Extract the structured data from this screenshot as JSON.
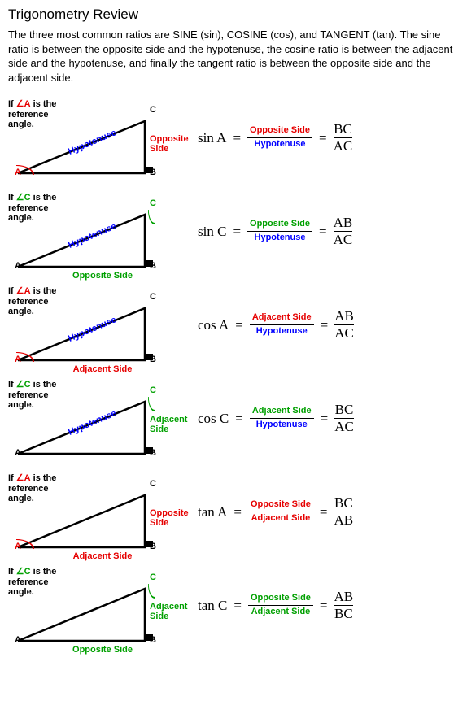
{
  "colors": {
    "red": "#e60000",
    "green": "#00a000",
    "blue": "#0000ff",
    "black": "#000000",
    "background": "#ffffff"
  },
  "title": "Trigonometry Review",
  "intro": "The three most  common ratios are SINE (sin), COSINE (cos), and TANGENT (tan).  The sine ratio is between the opposite side and the hypotenuse, the cosine ratio is between the adjacent side and the hypotenuse, and finally the tangent ratio is between the opposite side and the adjacent side.",
  "labels": {
    "ref_if": "If ",
    "ref_angle_A": "∠A",
    "ref_angle_C": "∠C",
    "ref_is_the": " is the",
    "ref_reference": "reference",
    "ref_angle": "angle.",
    "hypotenuse": "Hypotenuse",
    "opposite": "Opposite",
    "opposite_side": "Opposite Side",
    "adjacent": "Adjacent",
    "adjacent_side": "Adjacent Side",
    "side": "Side"
  },
  "vertices": {
    "A": "A",
    "B": "B",
    "C": "C"
  },
  "rows": [
    {
      "ref": "A",
      "ref_color": "red",
      "hyp_show": true,
      "right_label": "Opposite|Side",
      "right_color": "red",
      "bottom_label": "",
      "bottom_color": "",
      "func": "sin A",
      "num_text": "Opposite Side",
      "num_color": "red",
      "den_text": "Hypotenuse",
      "den_color": "blue",
      "rhs_num": "BC",
      "rhs_den": "AC"
    },
    {
      "ref": "C",
      "ref_color": "green",
      "hyp_show": true,
      "right_label": "",
      "right_color": "",
      "bottom_label": "Opposite Side",
      "bottom_color": "green",
      "func": "sin C",
      "num_text": "Opposite Side",
      "num_color": "green",
      "den_text": "Hypotenuse",
      "den_color": "blue",
      "rhs_num": "AB",
      "rhs_den": "AC"
    },
    {
      "ref": "A",
      "ref_color": "red",
      "hyp_show": true,
      "right_label": "",
      "right_color": "",
      "bottom_label": "Adjacent Side",
      "bottom_color": "red",
      "func": "cos A",
      "num_text": "Adjacent Side",
      "num_color": "red",
      "den_text": "Hypotenuse",
      "den_color": "blue",
      "rhs_num": "AB",
      "rhs_den": "AC"
    },
    {
      "ref": "C",
      "ref_color": "green",
      "hyp_show": true,
      "right_label": "Adjacent|Side",
      "right_color": "green",
      "bottom_label": "",
      "bottom_color": "",
      "func": "cos C",
      "num_text": "Adjacent Side",
      "num_color": "green",
      "den_text": "Hypotenuse",
      "den_color": "blue",
      "rhs_num": "BC",
      "rhs_den": "AC"
    },
    {
      "ref": "A",
      "ref_color": "red",
      "hyp_show": false,
      "right_label": "Opposite|Side",
      "right_color": "red",
      "bottom_label": "Adjacent Side",
      "bottom_color": "red",
      "func": "tan A",
      "num_text": "Opposite Side",
      "num_color": "red",
      "den_text": "Adjacent Side",
      "den_color": "red",
      "rhs_num": "BC",
      "rhs_den": "AB"
    },
    {
      "ref": "C",
      "ref_color": "green",
      "hyp_show": false,
      "right_label": "Adjacent|Side",
      "right_color": "green",
      "bottom_label": "Opposite Side",
      "bottom_color": "green",
      "func": "tan C",
      "num_text": "Opposite Side",
      "num_color": "green",
      "den_text": "Adjacent Side",
      "den_color": "green",
      "rhs_num": "AB",
      "rhs_den": "BC"
    }
  ]
}
